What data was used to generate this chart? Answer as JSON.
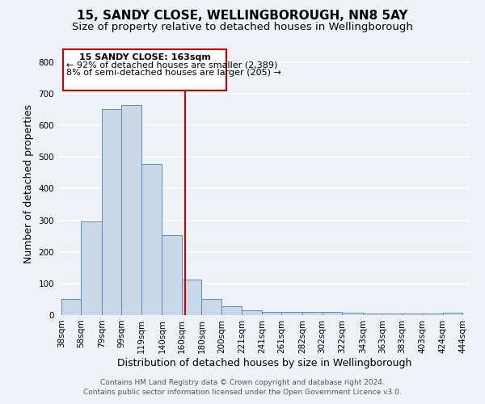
{
  "title": "15, SANDY CLOSE, WELLINGBOROUGH, NN8 5AY",
  "subtitle": "Size of property relative to detached houses in Wellingborough",
  "xlabel": "Distribution of detached houses by size in Wellingborough",
  "ylabel": "Number of detached properties",
  "bar_left_edges": [
    38,
    58,
    79,
    99,
    119,
    140,
    160,
    180,
    200,
    221,
    241,
    261,
    282,
    302,
    322,
    343,
    363,
    383,
    403,
    424
  ],
  "bar_widths": [
    20,
    21,
    20,
    20,
    21,
    20,
    20,
    20,
    21,
    20,
    20,
    21,
    20,
    20,
    21,
    20,
    20,
    20,
    21,
    20
  ],
  "bar_heights": [
    50,
    295,
    650,
    665,
    478,
    253,
    113,
    50,
    29,
    15,
    10,
    11,
    11,
    11,
    7,
    5,
    5,
    5,
    5,
    7
  ],
  "bar_color": "#c8d8e8",
  "bar_edge_color": "#5b8db8",
  "x_tick_labels": [
    "38sqm",
    "58sqm",
    "79sqm",
    "99sqm",
    "119sqm",
    "140sqm",
    "160sqm",
    "180sqm",
    "200sqm",
    "221sqm",
    "241sqm",
    "261sqm",
    "282sqm",
    "302sqm",
    "322sqm",
    "343sqm",
    "363sqm",
    "383sqm",
    "403sqm",
    "424sqm",
    "444sqm"
  ],
  "ylim": [
    0,
    830
  ],
  "yticks": [
    0,
    100,
    200,
    300,
    400,
    500,
    600,
    700,
    800
  ],
  "vline_x": 163,
  "vline_color": "#cc0000",
  "annotation_title": "15 SANDY CLOSE: 163sqm",
  "annotation_line1": "← 92% of detached houses are smaller (2,389)",
  "annotation_line2": "8% of semi-detached houses are larger (205) →",
  "annotation_box_color": "#cc0000",
  "footer_line1": "Contains HM Land Registry data © Crown copyright and database right 2024.",
  "footer_line2": "Contains public sector information licensed under the Open Government Licence v3.0.",
  "bg_color": "#eef2f7",
  "grid_color": "#ffffff",
  "title_fontsize": 11,
  "subtitle_fontsize": 9.5,
  "axis_label_fontsize": 9,
  "tick_fontsize": 7.5,
  "footer_fontsize": 6.5
}
